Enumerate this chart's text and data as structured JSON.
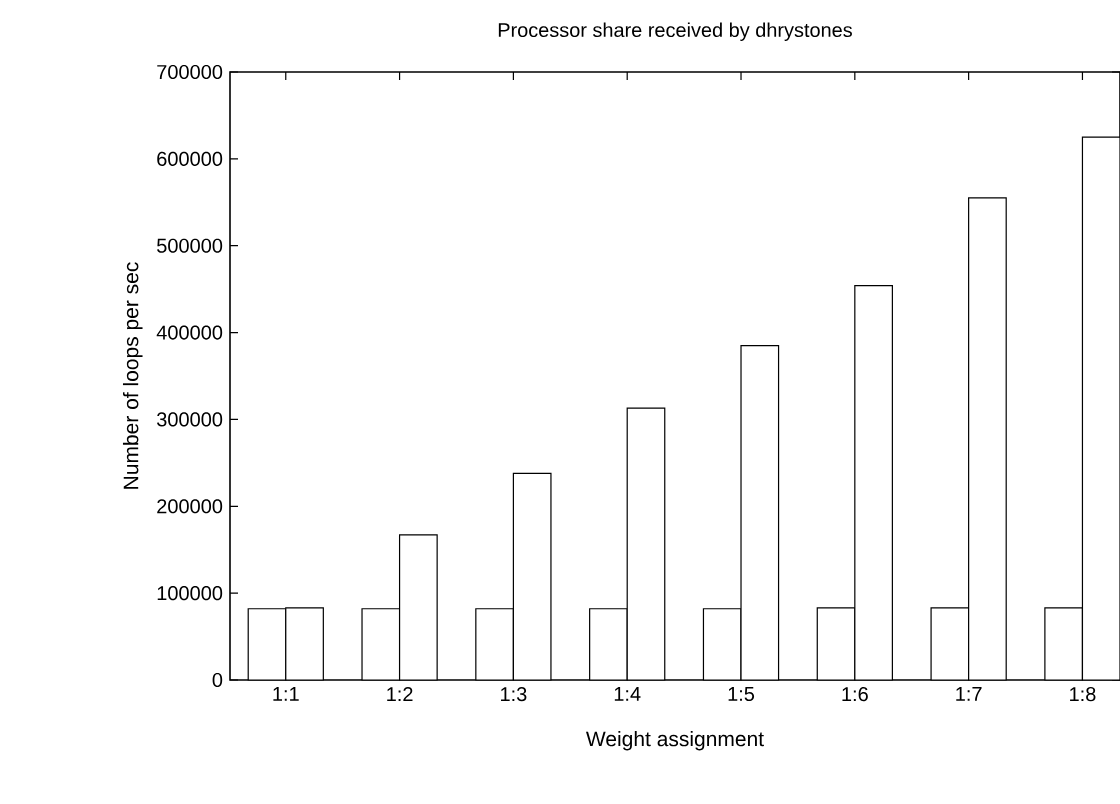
{
  "chart_data": {
    "type": "bar",
    "title": "Processor share received by dhrystones",
    "xlabel": "Weight assignment",
    "ylabel": "Number of loops per sec",
    "categories": [
      "1:1",
      "1:2",
      "1:3",
      "1:4",
      "1:5",
      "1:6",
      "1:7",
      "1:8"
    ],
    "series": [
      {
        "color": "#ffffff",
        "values": [
          82000,
          82000,
          82000,
          82000,
          82000,
          83000,
          83000,
          83000
        ]
      },
      {
        "color": "#ffffff",
        "values": [
          83000,
          167000,
          238000,
          313000,
          385000,
          454000,
          555000,
          625000
        ]
      }
    ],
    "ylim": [
      0,
      700000
    ],
    "yticks": [
      0,
      100000,
      200000,
      300000,
      400000,
      500000,
      600000,
      700000
    ],
    "grid": false
  }
}
